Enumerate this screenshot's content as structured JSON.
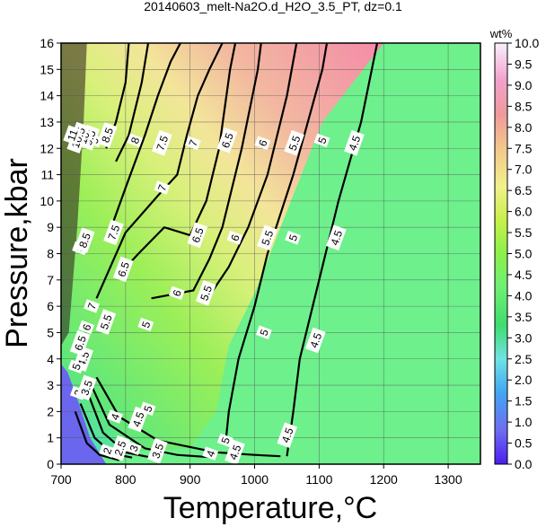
{
  "chart_data": {
    "type": "heatmap",
    "title": "20140603_melt-Na2O.d_H2O_3.5_PT, dz=0.1",
    "xlabel": "Temperature,°C",
    "ylabel": "Pressure,kbar",
    "xlim": [
      700,
      1350
    ],
    "ylim": [
      0,
      16
    ],
    "x_ticks": [
      "700",
      "800",
      "900",
      "1000",
      "1100",
      "1200",
      "1300"
    ],
    "y_ticks": [
      "0",
      "1",
      "2",
      "3",
      "4",
      "5",
      "6",
      "7",
      "8",
      "9",
      "10",
      "11",
      "12",
      "13",
      "14",
      "15",
      "16"
    ],
    "grid": true,
    "colorbar": {
      "label": "wt%",
      "min": 0,
      "max": 10,
      "ticks": [
        "0.0",
        "0.5",
        "1.0",
        "1.5",
        "2.0",
        "2.5",
        "3.0",
        "3.5",
        "4.0",
        "4.5",
        "5.0",
        "5.5",
        "6.0",
        "6.5",
        "7.0",
        "7.5",
        "8.0",
        "8.5",
        "9.0",
        "9.5",
        "10.0"
      ],
      "colors": [
        "#4b1ef0",
        "#6f6cf0",
        "#41a6f2",
        "#6fe3e3",
        "#3fdc6e",
        "#6ef074",
        "#8cf04a",
        "#c8f04a",
        "#f2f08c",
        "#f2c88c",
        "#f09a9a",
        "#f2a0cc",
        "#f8f0fa"
      ]
    },
    "background_value": 4.3,
    "contours": [
      {
        "value": 4.5,
        "points": [
          [
            1050,
            0.3
          ],
          [
            1060,
            2
          ],
          [
            1070,
            4
          ],
          [
            1090,
            6
          ],
          [
            1100,
            7
          ],
          [
            1130,
            10
          ],
          [
            1165,
            13
          ],
          [
            1190,
            16
          ]
        ]
      },
      {
        "value": 5,
        "points": [
          [
            955,
            0.8
          ],
          [
            960,
            2
          ],
          [
            975,
            4
          ],
          [
            1000,
            6
          ],
          [
            1020,
            8
          ],
          [
            1060,
            11
          ],
          [
            1105,
            15
          ],
          [
            1112,
            16
          ]
        ]
      },
      {
        "value": 5.5,
        "points": [
          [
            930,
            6.4
          ],
          [
            960,
            7.5
          ],
          [
            990,
            9
          ],
          [
            1020,
            11
          ],
          [
            1050,
            14
          ],
          [
            1065,
            16
          ]
        ]
      },
      {
        "value": 6,
        "points": [
          [
            840,
            6.3
          ],
          [
            905,
            6.6
          ],
          [
            930,
            7.8
          ],
          [
            950,
            9
          ],
          [
            980,
            12
          ],
          [
            1005,
            15
          ],
          [
            1010,
            16
          ]
        ]
      },
      {
        "value": 6.5,
        "points": [
          [
            790,
            7.2
          ],
          [
            820,
            8
          ],
          [
            860,
            9
          ],
          [
            900,
            8.7
          ],
          [
            925,
            10
          ],
          [
            945,
            12
          ],
          [
            962,
            15
          ],
          [
            970,
            16
          ]
        ]
      },
      {
        "value": 7,
        "points": [
          [
            755,
            6.3
          ],
          [
            800,
            8.8
          ],
          [
            850,
            10.2
          ],
          [
            880,
            11
          ],
          [
            895,
            12.5
          ],
          [
            912,
            14
          ],
          [
            930,
            15
          ],
          [
            950,
            16
          ]
        ]
      },
      {
        "value": 7.5,
        "points": [
          [
            775,
            8.8
          ],
          [
            800,
            10.5
          ],
          [
            830,
            12.5
          ],
          [
            850,
            14
          ],
          [
            870,
            15.3
          ],
          [
            885,
            16
          ]
        ]
      },
      {
        "value": 8,
        "points": [
          [
            785,
            11.5
          ],
          [
            805,
            12.5
          ],
          [
            825,
            14.5
          ],
          [
            835,
            16
          ]
        ]
      },
      {
        "value": 8.5,
        "points": [
          [
            770,
            12
          ],
          [
            785,
            13
          ],
          [
            800,
            14.5
          ],
          [
            805,
            16
          ]
        ]
      },
      {
        "value": 4,
        "points": [
          [
            755,
            3.3
          ],
          [
            790,
            1.8
          ],
          [
            850,
            0.9
          ],
          [
            940,
            0.45
          ],
          [
            1000,
            0.35
          ],
          [
            1040,
            0.3
          ]
        ]
      },
      {
        "value": 3.5,
        "points": [
          [
            745,
            3.1
          ],
          [
            775,
            1.5
          ],
          [
            830,
            0.6
          ],
          [
            880,
            0.35
          ],
          [
            940,
            0.25
          ]
        ]
      },
      {
        "value": 3,
        "points": [
          [
            740,
            2.8
          ],
          [
            765,
            1.2
          ],
          [
            800,
            0.45
          ],
          [
            840,
            0.25
          ]
        ]
      },
      {
        "value": 2.5,
        "points": [
          [
            730,
            2.3
          ],
          [
            752,
            1
          ],
          [
            780,
            0.4
          ],
          [
            810,
            0.25
          ]
        ]
      },
      {
        "value": 2,
        "points": [
          [
            722,
            2
          ],
          [
            740,
            0.8
          ],
          [
            760,
            0.35
          ],
          [
            790,
            0.15
          ]
        ]
      }
    ],
    "contour_labels": [
      {
        "text": "8.5",
        "x": 772,
        "y": 12.5
      },
      {
        "text": "8",
        "x": 815,
        "y": 12.3
      },
      {
        "text": "7.5",
        "x": 857,
        "y": 12.2
      },
      {
        "text": "7",
        "x": 905,
        "y": 12.2
      },
      {
        "text": "6.5",
        "x": 958,
        "y": 12.3
      },
      {
        "text": "6",
        "x": 1013,
        "y": 12.2
      },
      {
        "text": "5.5",
        "x": 1062,
        "y": 12.2
      },
      {
        "text": "5",
        "x": 1105,
        "y": 12.3
      },
      {
        "text": "4.5",
        "x": 1155,
        "y": 12.2
      },
      {
        "text": "7.5",
        "x": 782,
        "y": 8.8
      },
      {
        "text": "7",
        "x": 857,
        "y": 10.5
      },
      {
        "text": "6.5",
        "x": 912,
        "y": 8.7
      },
      {
        "text": "6",
        "x": 970,
        "y": 8.6
      },
      {
        "text": "5.5",
        "x": 1020,
        "y": 8.6
      },
      {
        "text": "5",
        "x": 1060,
        "y": 8.6
      },
      {
        "text": "4.5",
        "x": 1127,
        "y": 8.6
      },
      {
        "text": "6.5",
        "x": 797,
        "y": 7.4
      },
      {
        "text": "6",
        "x": 880,
        "y": 6.5
      },
      {
        "text": "5.5",
        "x": 925,
        "y": 6.5
      },
      {
        "text": "7",
        "x": 748,
        "y": 6.0
      },
      {
        "text": "6",
        "x": 740,
        "y": 5.2
      },
      {
        "text": "5.5",
        "x": 770,
        "y": 5.4
      },
      {
        "text": "5",
        "x": 832,
        "y": 5.3
      },
      {
        "text": "5",
        "x": 1015,
        "y": 5.0
      },
      {
        "text": "4.5",
        "x": 1095,
        "y": 4.7
      },
      {
        "text": "4.5",
        "x": 735,
        "y": 4.0
      },
      {
        "text": "3",
        "x": 727,
        "y": 2.7
      },
      {
        "text": "3.5",
        "x": 740,
        "y": 2.9
      },
      {
        "text": "4",
        "x": 784,
        "y": 1.8
      },
      {
        "text": "4.5",
        "x": 820,
        "y": 1.7
      },
      {
        "text": "5",
        "x": 835,
        "y": 2.1
      },
      {
        "text": "5",
        "x": 955,
        "y": 0.9
      },
      {
        "text": "4.5",
        "x": 1051,
        "y": 1.1
      },
      {
        "text": "2",
        "x": 772,
        "y": 0.5
      },
      {
        "text": "2.5",
        "x": 792,
        "y": 0.6
      },
      {
        "text": "3",
        "x": 813,
        "y": 0.6
      },
      {
        "text": "3.5",
        "x": 850,
        "y": 0.5
      },
      {
        "text": "4",
        "x": 932,
        "y": 0.4
      },
      {
        "text": "4.5",
        "x": 970,
        "y": 0.45
      },
      {
        "text": "8",
        "x": 730,
        "y": 8.2
      },
      {
        "text": "8.5",
        "x": 737,
        "y": 8.5
      },
      {
        "text": "9",
        "x": 752,
        "y": 12.3
      },
      {
        "text": "9.5",
        "x": 745,
        "y": 12.4
      },
      {
        "text": "10",
        "x": 736,
        "y": 12.4
      },
      {
        "text": "10.5",
        "x": 727,
        "y": 12.4
      },
      {
        "text": "11",
        "x": 718,
        "y": 12.5
      },
      {
        "text": "6.5",
        "x": 730,
        "y": 4.6
      },
      {
        "text": "5",
        "x": 724,
        "y": 3.7
      }
    ]
  }
}
